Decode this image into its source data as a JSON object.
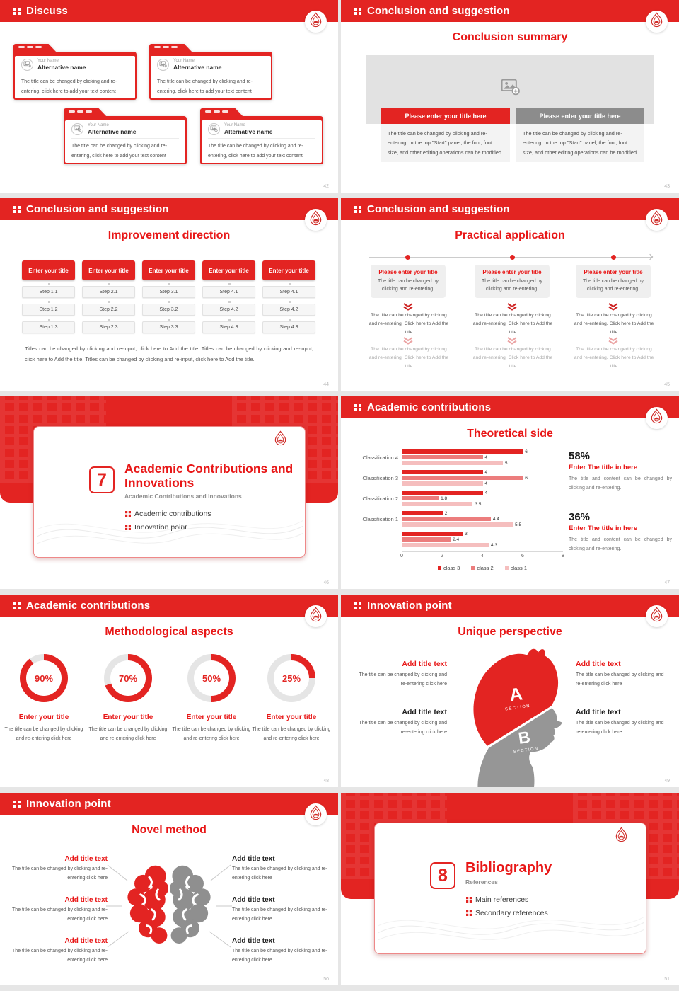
{
  "theme": {
    "red": "#e32422",
    "title_red": "#e81717",
    "grey_bar": "#8c8c8c",
    "donut_track": "#e5e5e5"
  },
  "slides": {
    "s42": {
      "header": "Discuss",
      "page": "42",
      "cards": [
        {
          "name": "Your Name",
          "alt": "Alternative name",
          "body": "The title can be changed by clicking and re-entering, click here to add your text content"
        },
        {
          "name": "Your Name",
          "alt": "Alternative name",
          "body": "The title can be changed by clicking and re-entering, click here to add your text content"
        },
        {
          "name": "Your Name",
          "alt": "Alternative name",
          "body": "The title can be changed by clicking and re-entering, click here to add your text content"
        },
        {
          "name": "Your Name",
          "alt": "Alternative name",
          "body": "The title can be changed by clicking and re-entering, click here to add your text content"
        }
      ]
    },
    "s43": {
      "header": "Conclusion and suggestion",
      "title": "Conclusion summary",
      "page": "43",
      "panels": [
        {
          "bar": "Please enter your title here",
          "body": "The title can be changed by clicking and re-entering. In the top \"Start\" panel, the font, font size, and other editing operations can be modified"
        },
        {
          "bar": "Please enter your title here",
          "body": "The title can be changed by clicking and re-entering. In the top \"Start\" panel, the font, font size, and other editing operations can be modified"
        }
      ]
    },
    "s44": {
      "header": "Conclusion and suggestion",
      "title": "Improvement direction",
      "page": "44",
      "columns": [
        {
          "title": "Enter your title",
          "steps": [
            "Step 1.1",
            "Step 1.2",
            "Step 1.3"
          ]
        },
        {
          "title": "Enter your title",
          "steps": [
            "Step 2.1",
            "Step 2.2",
            "Step 2.3"
          ]
        },
        {
          "title": "Enter your title",
          "steps": [
            "Step 3.1",
            "Step 3.2",
            "Step 3.3"
          ]
        },
        {
          "title": "Enter your title",
          "steps": [
            "Step 4.1",
            "Step 4.2",
            "Step 4.3"
          ]
        },
        {
          "title": "Enter your title",
          "steps": [
            "Step 4.1",
            "Step 4.2",
            "Step 4.3"
          ]
        }
      ],
      "footer": "Titles can be changed by clicking and re-input, click here to Add the title. Titles can be changed by clicking and re-input, click here to Add the title. Titles can be changed by clicking and re-input, click here to Add the title."
    },
    "s45": {
      "header": "Conclusion and suggestion",
      "title": "Practical application",
      "page": "45",
      "columns": [
        {
          "title": "Please enter your title",
          "sub": "The title can be changed by clicking and re-entering.",
          "step1": "The title can be changed by clicking and re-entering. Click here to Add the title",
          "step2": "The title can be changed by clicking and re-entering. Click here to Add the title"
        },
        {
          "title": "Please enter your title",
          "sub": "The title can be changed by clicking and re-entering.",
          "step1": "The title can be changed by clicking and re-entering. Click here to Add the title",
          "step2": "The title can be changed by clicking and re-entering. Click here to Add the title"
        },
        {
          "title": "Please enter your title",
          "sub": "The title can be changed by clicking and re-entering.",
          "step1": "The title can be changed by clicking and re-entering. Click here to Add the title",
          "step2": "The title can be changed by clicking and re-entering. Click here to Add the title"
        }
      ]
    },
    "s46": {
      "page": "46",
      "number": "7",
      "title": "Academic Contributions and Innovations",
      "subtitle": "Academic Contributions and Innovations",
      "bullets": [
        "Academic contributions",
        "Innovation point"
      ]
    },
    "s47": {
      "header": "Academic contributions",
      "title": "Theoretical side",
      "page": "47",
      "stats": [
        {
          "pct": "58%",
          "title": "Enter The title in here",
          "body": "The title and content can be changed by clicking and re-entering."
        },
        {
          "pct": "36%",
          "title": "Enter The title in here",
          "body": "The title and content can be changed by clicking and re-entering."
        }
      ]
    },
    "s48": {
      "header": "Academic contributions",
      "title": "Methodological aspects",
      "page": "48",
      "donuts": [
        {
          "pct": 90,
          "label": "90%",
          "title": "Enter your title",
          "body": "The title can be changed by clicking and re-entering click here"
        },
        {
          "pct": 70,
          "label": "70%",
          "title": "Enter your title",
          "body": "The title can be changed by clicking and re-entering click here"
        },
        {
          "pct": 50,
          "label": "50%",
          "title": "Enter your title",
          "body": "The title can be changed by clicking and re-entering click here"
        },
        {
          "pct": 25,
          "label": "25%",
          "title": "Enter your title",
          "body": "The title can be changed by clicking and re-entering click here"
        }
      ]
    },
    "s49": {
      "header": "Innovation point",
      "title": "Unique perspective",
      "page": "49",
      "left": [
        {
          "title": "Add title text",
          "body": "The title can be changed by clicking and re-entering click here"
        },
        {
          "title": "Add title text",
          "body": "The title can be changed by clicking and re-entering click here"
        }
      ],
      "right": [
        {
          "title": "Add title text",
          "body": "The title can be changed by clicking and re-entering click here"
        },
        {
          "title": "Add title text",
          "body": "The title can be changed by clicking and re-entering click here"
        }
      ],
      "head": {
        "a": "A",
        "a_sub": "SECTION",
        "b": "B",
        "b_sub": "SECTION"
      }
    },
    "s50": {
      "header": "Innovation point",
      "title": "Novel method",
      "page": "50",
      "left": [
        {
          "title": "Add title text",
          "body": "The title can be changed by clicking and re-entering click here"
        },
        {
          "title": "Add title text",
          "body": "The title can be changed by clicking and re-entering click here"
        },
        {
          "title": "Add title text",
          "body": "The title can be changed by clicking and re-entering click here"
        }
      ],
      "right": [
        {
          "title": "Add title text",
          "body": "The title can be changed by clicking and re-entering click here"
        },
        {
          "title": "Add title text",
          "body": "The title can be changed by clicking and re-entering click here"
        },
        {
          "title": "Add title text",
          "body": "The title can be changed by clicking and re-entering click here"
        }
      ]
    },
    "s51": {
      "page": "51",
      "number": "8",
      "title": "Bibliography",
      "subtitle": "References",
      "bullets": [
        "Main references",
        "Secondary references"
      ]
    }
  },
  "chart_data": [
    {
      "type": "bar",
      "orientation": "horizontal",
      "title": "Theoretical side",
      "categories": [
        "Classification 4",
        "Classification 3",
        "Classification 2",
        "Classification 1",
        ""
      ],
      "series": [
        {
          "name": "class 3",
          "values": [
            6,
            4,
            4,
            2,
            3
          ]
        },
        {
          "name": "class 2",
          "values": [
            4,
            6,
            1.8,
            4.4,
            2.4
          ]
        },
        {
          "name": "class 1",
          "values": [
            5,
            4,
            3.5,
            5.5,
            4.3
          ]
        }
      ],
      "colors": {
        "class 3": "#e32422",
        "class 2": "#ec7d7d",
        "class 1": "#f5bebe"
      },
      "xlim": [
        0,
        8
      ],
      "xticks": [
        0,
        2,
        4,
        6,
        8
      ],
      "legend_position": "bottom",
      "grid": false
    },
    {
      "type": "pie",
      "subtype": "donut",
      "title": "Methodological aspects",
      "values": [
        90,
        70,
        50,
        25
      ],
      "labels": [
        "90%",
        "70%",
        "50%",
        "25%"
      ]
    }
  ]
}
